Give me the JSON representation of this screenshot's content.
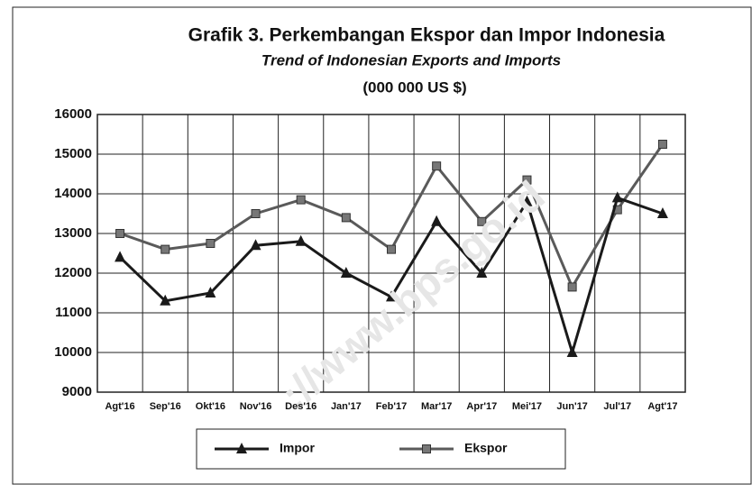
{
  "chart_data": {
    "type": "line",
    "title": "Grafik  3.  Perkembangan Ekspor dan Impor Indonesia",
    "subtitle": "Trend of Indonesian Exports and Imports",
    "unit_label": "(000 000 US $)",
    "watermark": "://www.bps.go.id",
    "categories": [
      "Agt'16",
      "Sep'16",
      "Okt'16",
      "Nov'16",
      "Des'16",
      "Jan'17",
      "Feb'17",
      "Mar'17",
      "Apr'17",
      "Mei'17",
      "Jun'17",
      "Jul'17",
      "Agt'17"
    ],
    "series": [
      {
        "name": "Impor",
        "color": "#1a1a1a",
        "marker": "triangle",
        "values": [
          12400,
          11300,
          11500,
          12700,
          12800,
          12000,
          11400,
          13300,
          12000,
          13800,
          10000,
          13900,
          13500
        ]
      },
      {
        "name": "Ekspor",
        "color": "#5a5a5a",
        "marker": "square",
        "values": [
          13000,
          12600,
          12750,
          13500,
          13850,
          13400,
          12600,
          14700,
          13300,
          14350,
          11650,
          13600,
          15250
        ]
      }
    ],
    "ylim": [
      9000,
      16000
    ],
    "yticks": [
      9000,
      10000,
      11000,
      12000,
      13000,
      14000,
      15000,
      16000
    ],
    "grid": true,
    "legend": "bottom"
  }
}
